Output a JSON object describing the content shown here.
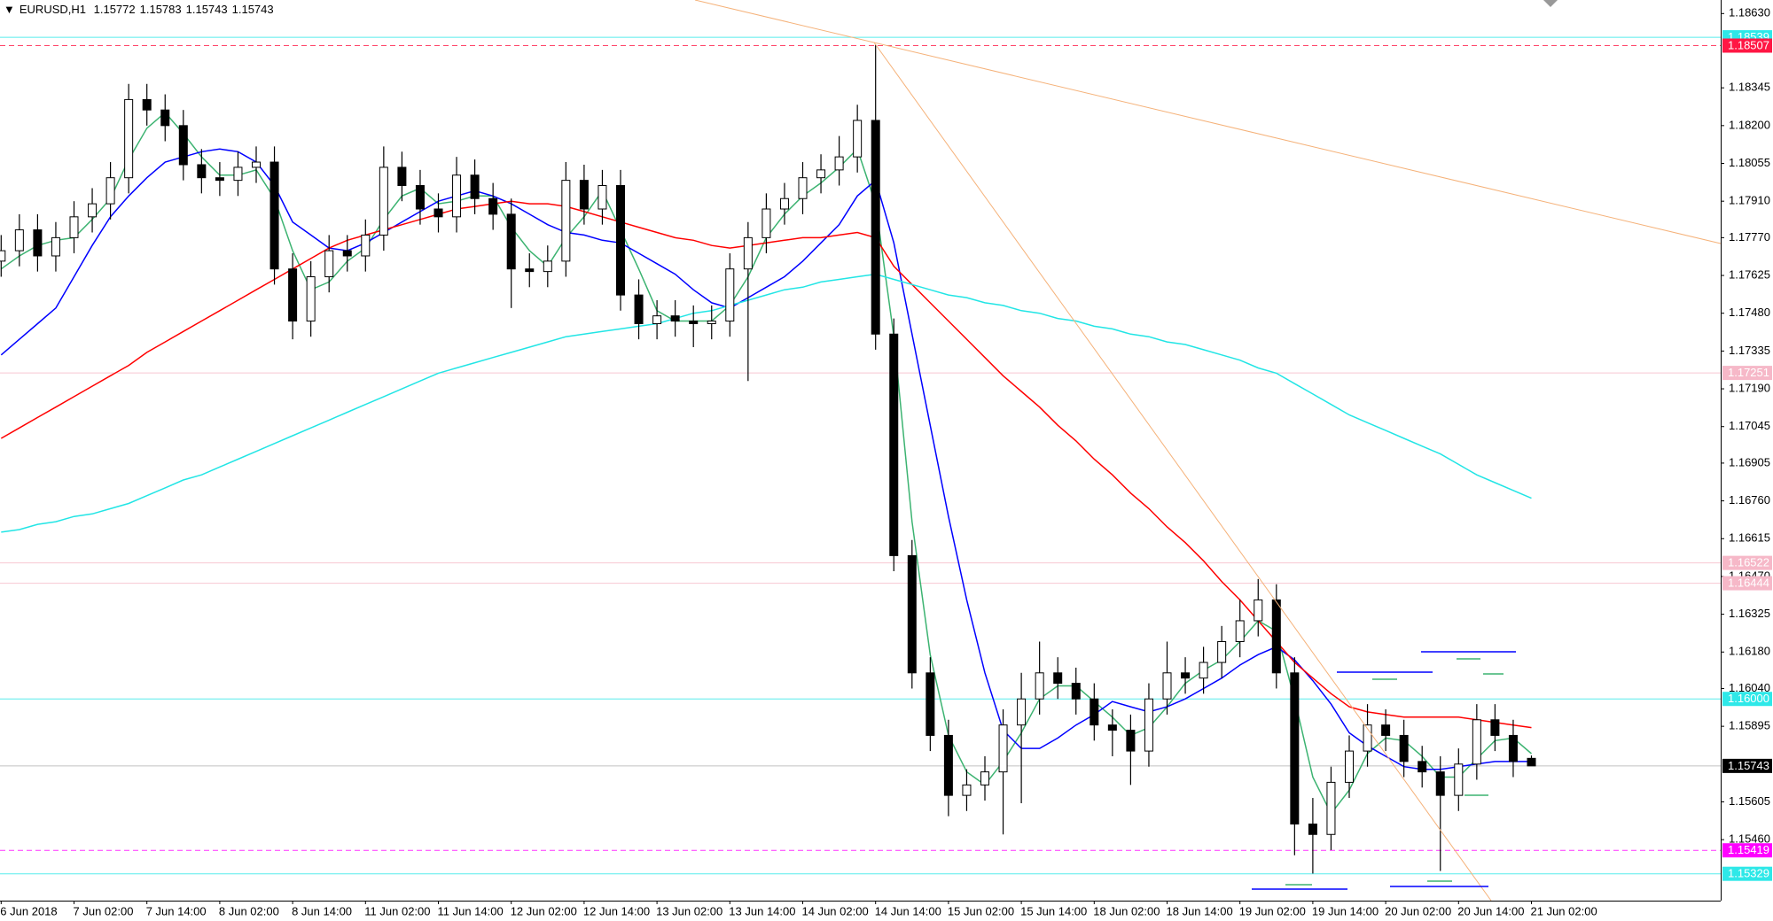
{
  "chart_data": {
    "type": "candlestick",
    "symbol": "EURUSD,H1",
    "ylim": [
      1.15226,
      1.18682
    ],
    "yticks": [
      {
        "value": 1.1863,
        "label": "1.18630"
      },
      {
        "value": 1.18345,
        "label": "1.18345"
      },
      {
        "value": 1.182,
        "label": "1.18200"
      },
      {
        "value": 1.18055,
        "label": "1.18055"
      },
      {
        "value": 1.1791,
        "label": "1.17910"
      },
      {
        "value": 1.1777,
        "label": "1.17770"
      },
      {
        "value": 1.17625,
        "label": "1.17625"
      },
      {
        "value": 1.1748,
        "label": "1.17480"
      },
      {
        "value": 1.17335,
        "label": "1.17335"
      },
      {
        "value": 1.1719,
        "label": "1.17190"
      },
      {
        "value": 1.17045,
        "label": "1.17045"
      },
      {
        "value": 1.16905,
        "label": "1.16905"
      },
      {
        "value": 1.1676,
        "label": "1.16760"
      },
      {
        "value": 1.16615,
        "label": "1.16615"
      },
      {
        "value": 1.1647,
        "label": "1.16470"
      },
      {
        "value": 1.16325,
        "label": "1.16325"
      },
      {
        "value": 1.1618,
        "label": "1.16180"
      },
      {
        "value": 1.1604,
        "label": "1.16040"
      },
      {
        "value": 1.15895,
        "label": "1.15895"
      },
      {
        "value": 1.15605,
        "label": "1.15605"
      },
      {
        "value": 1.1546,
        "label": "1.15460"
      }
    ],
    "xticks": [
      "6 Jun 2018",
      "7 Jun 02:00",
      "7 Jun 14:00",
      "8 Jun 02:00",
      "8 Jun 14:00",
      "11 Jun 02:00",
      "11 Jun 14:00",
      "12 Jun 02:00",
      "12 Jun 14:00",
      "13 Jun 02:00",
      "13 Jun 14:00",
      "14 Jun 02:00",
      "14 Jun 14:00",
      "15 Jun 02:00",
      "15 Jun 14:00",
      "18 Jun 02:00",
      "18 Jun 14:00",
      "19 Jun 02:00",
      "19 Jun 14:00",
      "20 Jun 02:00",
      "20 Jun 14:00",
      "21 Jun 02:00"
    ],
    "candles": {
      "open": [
        1.1768,
        1.1772,
        1.178,
        1.177,
        1.1777,
        1.1785,
        1.179,
        1.18,
        1.183,
        1.1826,
        1.182,
        1.1805,
        1.18,
        1.1799,
        1.1804,
        1.1806,
        1.1765,
        1.1745,
        1.1762,
        1.1772,
        1.177,
        1.1778,
        1.1804,
        1.1797,
        1.1788,
        1.1785,
        1.1801,
        1.1792,
        1.1786,
        1.1765,
        1.1764,
        1.1768,
        1.1799,
        1.1788,
        1.1797,
        1.1755,
        1.1744,
        1.1747,
        1.1745,
        1.1744,
        1.1745,
        1.1765,
        1.1777,
        1.1788,
        1.1792,
        1.18,
        1.1803,
        1.1808,
        1.1822,
        1.174,
        1.1655,
        1.161,
        1.1586,
        1.1563,
        1.1567,
        1.1572,
        1.159,
        1.16,
        1.161,
        1.1606,
        1.16,
        1.159,
        1.1588,
        1.158,
        1.16,
        1.161,
        1.1608,
        1.1614,
        1.1622,
        1.163,
        1.1638,
        1.161,
        1.1552,
        1.1548,
        1.1568,
        1.158,
        1.159,
        1.1586,
        1.1576,
        1.1572,
        1.1563,
        1.1575,
        1.1592,
        1.1586,
        1.15772
      ],
      "high": [
        1.1778,
        1.1786,
        1.1786,
        1.1783,
        1.1791,
        1.1796,
        1.1806,
        1.1836,
        1.1836,
        1.1832,
        1.1826,
        1.1811,
        1.1806,
        1.181,
        1.1812,
        1.1812,
        1.1771,
        1.1768,
        1.1778,
        1.1778,
        1.1784,
        1.1812,
        1.181,
        1.1803,
        1.1794,
        1.1808,
        1.1807,
        1.1798,
        1.1792,
        1.1771,
        1.1774,
        1.1806,
        1.1805,
        1.1803,
        1.1803,
        1.1761,
        1.1753,
        1.1753,
        1.1751,
        1.1751,
        1.1771,
        1.1783,
        1.1794,
        1.1798,
        1.1806,
        1.1809,
        1.1816,
        1.1828,
        1.1851,
        1.1746,
        1.1661,
        1.1616,
        1.1592,
        1.1573,
        1.1578,
        1.1596,
        1.161,
        1.1622,
        1.1616,
        1.1612,
        1.1606,
        1.1596,
        1.1594,
        1.1606,
        1.1622,
        1.1616,
        1.162,
        1.1628,
        1.1638,
        1.1646,
        1.1644,
        1.1616,
        1.1562,
        1.1574,
        1.1586,
        1.1598,
        1.1596,
        1.1592,
        1.1582,
        1.1578,
        1.1581,
        1.1598,
        1.1598,
        1.1592,
        1.15783
      ],
      "low": [
        1.1762,
        1.1766,
        1.1764,
        1.1764,
        1.1771,
        1.1779,
        1.1784,
        1.1794,
        1.182,
        1.1814,
        1.1799,
        1.1794,
        1.1793,
        1.1793,
        1.1798,
        1.1759,
        1.1738,
        1.1739,
        1.1756,
        1.1764,
        1.1764,
        1.1772,
        1.1791,
        1.1782,
        1.1779,
        1.1779,
        1.1786,
        1.178,
        1.175,
        1.1758,
        1.1758,
        1.1762,
        1.1782,
        1.1782,
        1.1749,
        1.1738,
        1.1738,
        1.1739,
        1.1735,
        1.1738,
        1.1739,
        1.1722,
        1.1771,
        1.1782,
        1.1786,
        1.1794,
        1.1797,
        1.1802,
        1.1734,
        1.1649,
        1.1604,
        1.158,
        1.1555,
        1.1557,
        1.1561,
        1.1548,
        1.156,
        1.1594,
        1.16,
        1.1594,
        1.1584,
        1.1578,
        1.1567,
        1.1574,
        1.1594,
        1.1602,
        1.1602,
        1.1608,
        1.1616,
        1.1624,
        1.1604,
        1.154,
        1.1533,
        1.1542,
        1.1562,
        1.1574,
        1.158,
        1.157,
        1.1566,
        1.1534,
        1.1557,
        1.1569,
        1.158,
        1.157,
        1.15743
      ],
      "close": [
        1.1772,
        1.178,
        1.177,
        1.1777,
        1.1785,
        1.179,
        1.18,
        1.183,
        1.1826,
        1.182,
        1.1805,
        1.18,
        1.1799,
        1.1804,
        1.1806,
        1.1765,
        1.1745,
        1.1762,
        1.1772,
        1.177,
        1.1778,
        1.1804,
        1.1797,
        1.1788,
        1.1785,
        1.1801,
        1.1792,
        1.1786,
        1.1765,
        1.1764,
        1.1768,
        1.1799,
        1.1788,
        1.1797,
        1.1755,
        1.1744,
        1.1747,
        1.1745,
        1.1744,
        1.1745,
        1.1765,
        1.1777,
        1.1788,
        1.1792,
        1.18,
        1.1803,
        1.1808,
        1.1822,
        1.174,
        1.1655,
        1.161,
        1.1586,
        1.1563,
        1.1567,
        1.1572,
        1.159,
        1.16,
        1.161,
        1.1606,
        1.16,
        1.159,
        1.1588,
        1.158,
        1.16,
        1.161,
        1.1608,
        1.1614,
        1.1622,
        1.163,
        1.1638,
        1.161,
        1.1552,
        1.1548,
        1.1568,
        1.158,
        1.159,
        1.1586,
        1.1576,
        1.1572,
        1.1563,
        1.1575,
        1.1592,
        1.1586,
        1.1576,
        1.15743
      ]
    },
    "series": [
      {
        "color": "#3cb371",
        "values": [
          1.1765,
          1.177,
          1.1774,
          1.1776,
          1.1777,
          1.1784,
          1.1792,
          1.1807,
          1.1819,
          1.1825,
          1.1817,
          1.1808,
          1.1801,
          1.1801,
          1.1803,
          1.1792,
          1.1772,
          1.1757,
          1.176,
          1.1768,
          1.1773,
          1.1784,
          1.1793,
          1.1796,
          1.179,
          1.1791,
          1.1793,
          1.1793,
          1.1781,
          1.1772,
          1.1766,
          1.1777,
          1.1785,
          1.1795,
          1.178,
          1.1765,
          1.1749,
          1.1745,
          1.1745,
          1.1745,
          1.1751,
          1.1762,
          1.1777,
          1.1786,
          1.1793,
          1.1798,
          1.1804,
          1.1811,
          1.179,
          1.1739,
          1.1668,
          1.1617,
          1.1586,
          1.1572,
          1.1567,
          1.1576,
          1.1587,
          1.16,
          1.1605,
          1.1605,
          1.1599,
          1.1593,
          1.1586,
          1.1589,
          1.1597,
          1.1606,
          1.1611,
          1.1615,
          1.1622,
          1.163,
          1.1626,
          1.16,
          1.157,
          1.1556,
          1.1565,
          1.1579,
          1.1585,
          1.1584,
          1.1578,
          1.157,
          1.157,
          1.1577,
          1.1584,
          1.1585,
          1.1579
        ]
      },
      {
        "color": "#0000ff",
        "values": [
          1.1732,
          1.1738,
          1.1744,
          1.175,
          1.1762,
          1.1774,
          1.1785,
          1.1793,
          1.18,
          1.1806,
          1.1808,
          1.181,
          1.1811,
          1.181,
          1.1806,
          1.1797,
          1.1783,
          1.1778,
          1.1773,
          1.1772,
          1.1775,
          1.1779,
          1.1783,
          1.1787,
          1.1791,
          1.1793,
          1.1795,
          1.1793,
          1.179,
          1.1786,
          1.1782,
          1.1779,
          1.1778,
          1.1776,
          1.1775,
          1.1771,
          1.1767,
          1.1763,
          1.1757,
          1.1752,
          1.175,
          1.1754,
          1.1758,
          1.1762,
          1.1768,
          1.1775,
          1.1782,
          1.1793,
          1.1799,
          1.1775,
          1.174,
          1.1705,
          1.167,
          1.1638,
          1.161,
          1.1588,
          1.1581,
          1.1581,
          1.1585,
          1.159,
          1.1594,
          1.1599,
          1.1597,
          1.1595,
          1.1597,
          1.16,
          1.1604,
          1.1608,
          1.1613,
          1.1617,
          1.162,
          1.1615,
          1.1607,
          1.1598,
          1.1587,
          1.1582,
          1.1578,
          1.1574,
          1.1573,
          1.1573,
          1.1574,
          1.1575,
          1.1576,
          1.1576,
          1.1576
        ]
      },
      {
        "color": "#ff0000",
        "values": [
          1.17,
          1.1704,
          1.1708,
          1.1712,
          1.1716,
          1.172,
          1.1724,
          1.1728,
          1.1733,
          1.1737,
          1.1741,
          1.1745,
          1.1749,
          1.1753,
          1.1757,
          1.1761,
          1.1765,
          1.1769,
          1.1773,
          1.1776,
          1.1778,
          1.178,
          1.1782,
          1.1784,
          1.1786,
          1.1788,
          1.1789,
          1.179,
          1.1791,
          1.179,
          1.179,
          1.1789,
          1.1787,
          1.1785,
          1.1783,
          1.1781,
          1.1779,
          1.1777,
          1.1776,
          1.1774,
          1.1773,
          1.1774,
          1.1775,
          1.1776,
          1.1777,
          1.1777,
          1.1778,
          1.1779,
          1.1777,
          1.1766,
          1.1759,
          1.1752,
          1.1745,
          1.1738,
          1.1731,
          1.1724,
          1.1718,
          1.1712,
          1.1705,
          1.1699,
          1.1692,
          1.1686,
          1.1679,
          1.1673,
          1.1666,
          1.166,
          1.1653,
          1.1645,
          1.1638,
          1.163,
          1.1622,
          1.1614,
          1.1608,
          1.1602,
          1.1597,
          1.1595,
          1.1594,
          1.1593,
          1.1593,
          1.1593,
          1.1593,
          1.1592,
          1.1591,
          1.159,
          1.1589
        ]
      },
      {
        "color": "#22e5e5",
        "values": [
          1.1664,
          1.1665,
          1.1667,
          1.1668,
          1.167,
          1.1671,
          1.1673,
          1.1675,
          1.1678,
          1.1681,
          1.1684,
          1.1686,
          1.1689,
          1.1692,
          1.1695,
          1.1698,
          1.1701,
          1.1704,
          1.1707,
          1.171,
          1.1713,
          1.1716,
          1.1719,
          1.1722,
          1.1725,
          1.1727,
          1.1729,
          1.1731,
          1.1733,
          1.1735,
          1.1737,
          1.1739,
          1.174,
          1.1741,
          1.1742,
          1.1743,
          1.1744,
          1.1746,
          1.1748,
          1.1749,
          1.1751,
          1.1753,
          1.1755,
          1.1757,
          1.1758,
          1.176,
          1.1761,
          1.1762,
          1.1763,
          1.1761,
          1.1759,
          1.1757,
          1.1755,
          1.1754,
          1.1752,
          1.1751,
          1.1749,
          1.1748,
          1.1746,
          1.1745,
          1.1743,
          1.1742,
          1.174,
          1.1739,
          1.1737,
          1.1736,
          1.1734,
          1.1732,
          1.173,
          1.1727,
          1.1725,
          1.1721,
          1.1717,
          1.1713,
          1.1709,
          1.1706,
          1.1703,
          1.17,
          1.1697,
          1.1694,
          1.169,
          1.1686,
          1.1683,
          1.168,
          1.1677
        ]
      }
    ],
    "levels": [
      {
        "value": 1.18539,
        "label": "1.18539",
        "color": "#2ee8e8",
        "dashed": false
      },
      {
        "value": 1.18507,
        "label": "1.18507",
        "color": "#ff1744",
        "dashed": true
      },
      {
        "value": 1.17251,
        "label": "1.17251",
        "color": "#f6b8c8",
        "dashed": false
      },
      {
        "value": 1.16522,
        "label": "1.16522",
        "color": "#f6b8c8",
        "dashed": false
      },
      {
        "value": 1.16444,
        "label": "1.16444",
        "color": "#f6b8c8",
        "dashed": false
      },
      {
        "value": 1.16,
        "label": "1.16000",
        "color": "#2ee8e8",
        "dashed": false
      },
      {
        "value": 1.15419,
        "label": "1.15419",
        "color": "#ff00ff",
        "dashed": true
      },
      {
        "value": 1.15329,
        "label": "1.15329",
        "color": "#2ee8e8",
        "dashed": false
      }
    ]
  }
}
